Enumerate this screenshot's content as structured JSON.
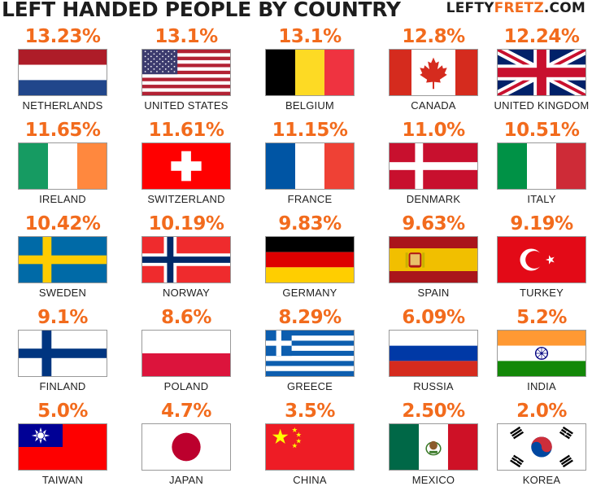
{
  "title": "LEFT HANDED PEOPLE BY COUNTRY",
  "brand": {
    "part1": "LEFTY",
    "part2": "FRETZ",
    "part3": ".COM"
  },
  "colors": {
    "accent": "#f26b1d",
    "text": "#1d1d1d"
  },
  "countries": [
    {
      "name": "NETHERLANDS",
      "percent": "13.23%",
      "flag": "netherlands-flag"
    },
    {
      "name": "UNITED STATES",
      "percent": "13.1%",
      "flag": "united-states-flag"
    },
    {
      "name": "BELGIUM",
      "percent": "13.1%",
      "flag": "belgium-flag"
    },
    {
      "name": "CANADA",
      "percent": "12.8%",
      "flag": "canada-flag"
    },
    {
      "name": "UNITED KINGDOM",
      "percent": "12.24%",
      "flag": "united-kingdom-flag"
    },
    {
      "name": "IRELAND",
      "percent": "11.65%",
      "flag": "ireland-flag"
    },
    {
      "name": "SWITZERLAND",
      "percent": "11.61%",
      "flag": "switzerland-flag"
    },
    {
      "name": "FRANCE",
      "percent": "11.15%",
      "flag": "france-flag"
    },
    {
      "name": "DENMARK",
      "percent": "11.0%",
      "flag": "denmark-flag"
    },
    {
      "name": "ITALY",
      "percent": "10.51%",
      "flag": "italy-flag"
    },
    {
      "name": "SWEDEN",
      "percent": "10.42%",
      "flag": "sweden-flag"
    },
    {
      "name": "NORWAY",
      "percent": "10.19%",
      "flag": "norway-flag"
    },
    {
      "name": "GERMANY",
      "percent": "9.83%",
      "flag": "germany-flag"
    },
    {
      "name": "SPAIN",
      "percent": "9.63%",
      "flag": "spain-flag"
    },
    {
      "name": "TURKEY",
      "percent": "9.19%",
      "flag": "turkey-flag"
    },
    {
      "name": "FINLAND",
      "percent": "9.1%",
      "flag": "finland-flag"
    },
    {
      "name": "POLAND",
      "percent": "8.6%",
      "flag": "poland-flag"
    },
    {
      "name": "GREECE",
      "percent": "8.29%",
      "flag": "greece-flag"
    },
    {
      "name": "RUSSIA",
      "percent": "6.09%",
      "flag": "russia-flag"
    },
    {
      "name": "INDIA",
      "percent": "5.2%",
      "flag": "india-flag"
    },
    {
      "name": "TAIWAN",
      "percent": "5.0%",
      "flag": "taiwan-flag"
    },
    {
      "name": "JAPAN",
      "percent": "4.7%",
      "flag": "japan-flag"
    },
    {
      "name": "CHINA",
      "percent": "3.5%",
      "flag": "china-flag"
    },
    {
      "name": "MEXICO",
      "percent": "2.50%",
      "flag": "mexico-flag"
    },
    {
      "name": "KOREA",
      "percent": "2.0%",
      "flag": "korea-flag"
    }
  ]
}
